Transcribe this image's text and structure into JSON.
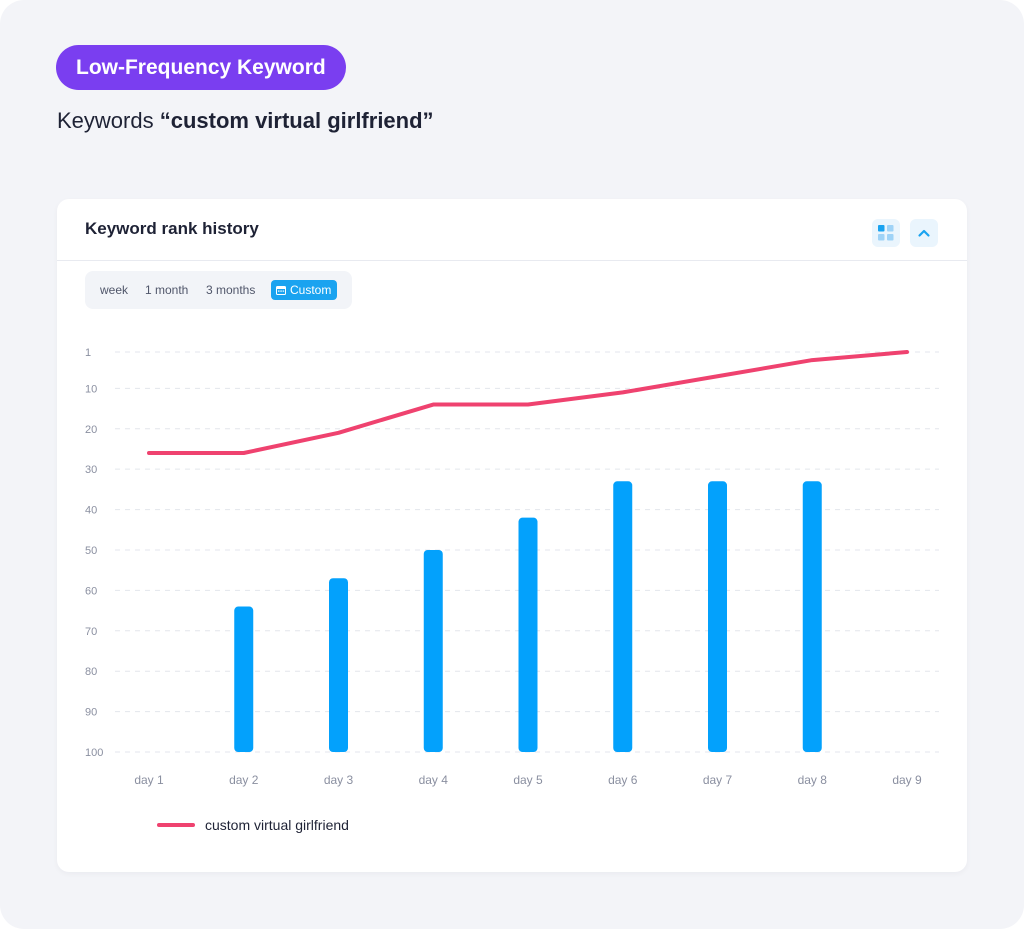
{
  "badge": {
    "label": "Low-Frequency Keyword"
  },
  "heading": {
    "prefix": "Keywords ",
    "keyword": "“custom virtual girlfriend”"
  },
  "card": {
    "title": "Keyword rank history",
    "buttons": {
      "grid_icon": "grid-icon",
      "collapse_icon": "chevron-up-icon"
    },
    "tabs": [
      "week",
      "1 month",
      "3 months",
      "Custom"
    ],
    "active_tab": "Custom"
  },
  "colors": {
    "accent": "#1aa3f0",
    "bar": "#03a1fc",
    "line": "#ef426f",
    "badge": "#7a3ef0"
  },
  "chart_data": {
    "type": "bar",
    "categories": [
      "day 1",
      "day 2",
      "day 3",
      "day 4",
      "day 5",
      "day 6",
      "day 7",
      "day 8",
      "day 9"
    ],
    "y_ticks": [
      "1",
      "10",
      "20",
      "30",
      "40",
      "50",
      "60",
      "70",
      "80",
      "90",
      "100"
    ],
    "ylim": [
      1,
      100
    ],
    "y_inverted": true,
    "grid": true,
    "legend_position": "bottom-left",
    "series": [
      {
        "name": "custom virtual girlfriend",
        "type": "line",
        "values": [
          26,
          26,
          21,
          14,
          14,
          11,
          7,
          3,
          1
        ]
      },
      {
        "type": "bar",
        "values": [
          null,
          64,
          57,
          50,
          42,
          33,
          33,
          33,
          null
        ]
      }
    ]
  }
}
